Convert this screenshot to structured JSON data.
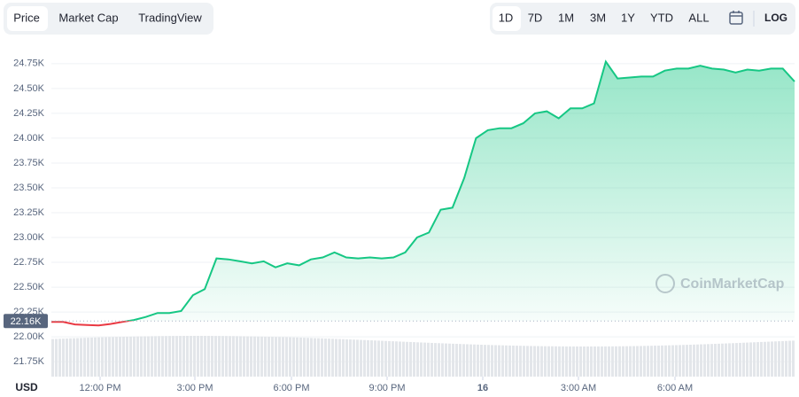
{
  "toolbar": {
    "tabs": [
      "Price",
      "Market Cap",
      "TradingView"
    ],
    "ranges": [
      "1D",
      "7D",
      "1M",
      "3M",
      "1Y",
      "YTD",
      "ALL"
    ],
    "log": "LOG"
  },
  "chart_data": {
    "type": "line",
    "currency": "USD",
    "watermark": "CoinMarketCap",
    "xtick_labels": [
      "12:00 PM",
      "3:00 PM",
      "6:00 PM",
      "9:00 PM",
      "16",
      "3:00 AM",
      "6:00 AM"
    ],
    "series": [
      {
        "name": "Price",
        "color": "#16c784",
        "below_color": "#ea3943",
        "values": [
          22150,
          22150,
          22125,
          22120,
          22115,
          22130,
          22150,
          22170,
          22200,
          22240,
          22240,
          22260,
          22420,
          22480,
          22790,
          22780,
          22760,
          22740,
          22760,
          22700,
          22740,
          22720,
          22780,
          22800,
          22850,
          22800,
          22790,
          22800,
          22790,
          22800,
          22850,
          23000,
          23050,
          23280,
          23300,
          23600,
          24000,
          24080,
          24100,
          24100,
          24150,
          24250,
          24270,
          24200,
          24300,
          24300,
          24350,
          24770,
          24600,
          24610,
          24620,
          24620,
          24680,
          24700,
          24700,
          24730,
          24700,
          24690,
          24660,
          24690,
          24680,
          24700,
          24700,
          24570
        ]
      }
    ],
    "reference": {
      "value": 22160,
      "label": "22.16K"
    },
    "ylim": [
      21600,
      24900
    ],
    "yticks": [
      {
        "value": 21750,
        "label": "21.75K"
      },
      {
        "value": 22000,
        "label": "22.00K"
      },
      {
        "value": 22250,
        "label": "22.25K"
      },
      {
        "value": 22500,
        "label": "22.50K"
      },
      {
        "value": 22750,
        "label": "22.75K"
      },
      {
        "value": 23000,
        "label": "23.00K"
      },
      {
        "value": 23250,
        "label": "23.25K"
      },
      {
        "value": 23500,
        "label": "23.50K"
      },
      {
        "value": 23750,
        "label": "23.75K"
      },
      {
        "value": 24000,
        "label": "24.00K"
      },
      {
        "value": 24250,
        "label": "24.25K"
      },
      {
        "value": 24500,
        "label": "24.50K"
      },
      {
        "value": 24750,
        "label": "24.75K"
      }
    ],
    "grid": true
  }
}
